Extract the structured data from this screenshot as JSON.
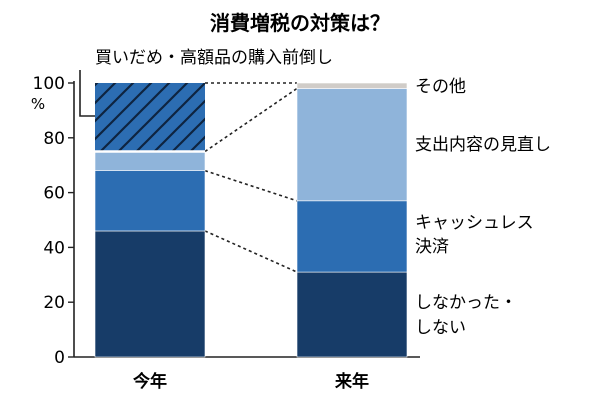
{
  "chart_data": {
    "type": "bar",
    "stacked": true,
    "title": "消費増税の対策は？",
    "ylabel": "%",
    "ylim": [
      0,
      100
    ],
    "yticks": [
      "0",
      "20",
      "40",
      "60",
      "80",
      "100"
    ],
    "categories": [
      "今年",
      "来年"
    ],
    "series": [
      {
        "name": "しなかった・しない",
        "label_lines": [
          "しなかった・",
          "しない"
        ],
        "color": "#173c68",
        "values": [
          46,
          31
        ]
      },
      {
        "name": "キャッシュレス決済",
        "label_lines": [
          "キャッシュレス",
          "決済"
        ],
        "color": "#2c6db2",
        "values": [
          22,
          26
        ]
      },
      {
        "name": "支出内容の見直し",
        "label_lines": [
          "支出内容の見直し"
        ],
        "color": "#8fb4da",
        "values": [
          7,
          41
        ]
      },
      {
        "name": "買いだめ・高額品の購入前倒し",
        "label_lines": [
          "買いだめ・高額品の購入前倒し"
        ],
        "color": "#2c6db2",
        "pattern": "hatch",
        "values": [
          25,
          0
        ]
      },
      {
        "name": "その他",
        "label_lines": [
          "その他"
        ],
        "color": "#d0ccc8",
        "values": [
          0,
          2
        ]
      }
    ],
    "grid": false
  }
}
